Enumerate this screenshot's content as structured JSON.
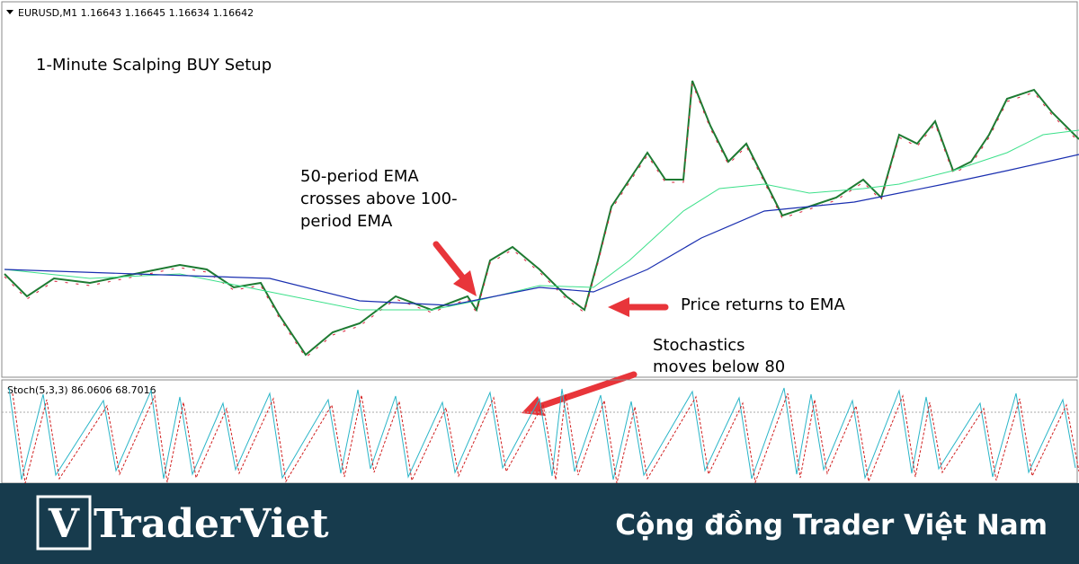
{
  "header": {
    "symbol_line": "EURUSD,M1  1.16643 1.16645 1.16634 1.16642"
  },
  "title": "1-Minute Scalping BUY Setup",
  "annotations": {
    "ema_cross": [
      "50-period EMA",
      "crosses above 100-",
      "period EMA"
    ],
    "price_return": "Price returns to EMA",
    "stochastics": [
      "Stochastics",
      "moves below 80"
    ]
  },
  "indicator": {
    "label": "Stoch(5,3,3) 86.0606 68.7016"
  },
  "banner": {
    "logo_mark": "V",
    "logo_text": "TraderViet",
    "tagline": "Cộng đồng Trader Việt Nam"
  }
}
